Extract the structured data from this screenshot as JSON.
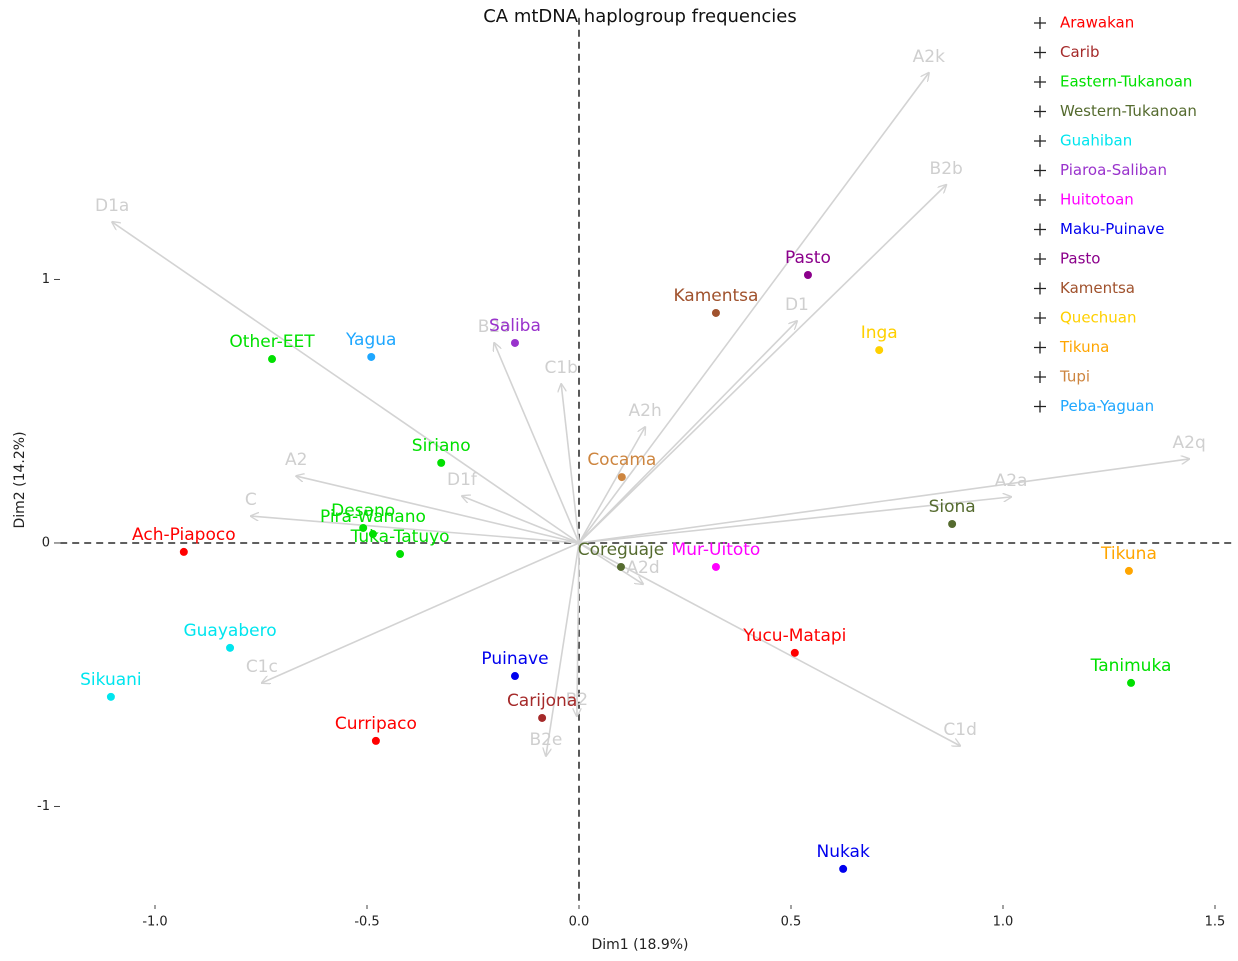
{
  "chart_data": {
    "type": "biplot",
    "title": "CA mtDNA haplogroup frequencies",
    "xlabel": "Dim1 (18.9%)",
    "ylabel": "Dim2 (14.2%)",
    "xlim": [
      -1.2,
      1.55
    ],
    "ylim": [
      -1.35,
      2.05
    ],
    "xticks": [
      {
        "value": -1.0,
        "label": "-1.0"
      },
      -0.5,
      {
        "value": 0,
        "label": "0.0"
      },
      0.5,
      {
        "value": 1.0,
        "label": "1.0"
      },
      1.5
    ],
    "yticks": [
      -1,
      0,
      1
    ],
    "series": [
      {
        "name": "Arawakan",
        "color": "#ff0000",
        "labels": [
          "Ach-Piapoco",
          "Curripaco",
          "Yucu-Matapi"
        ],
        "x": [
          -0.932,
          -0.479,
          0.509
        ],
        "y": [
          -0.034,
          -0.751,
          -0.417
        ]
      },
      {
        "name": "Carib",
        "color": "#a52a2a",
        "labels": [
          "Carijona"
        ],
        "x": [
          -0.087
        ],
        "y": [
          -0.664
        ]
      },
      {
        "name": "Eastern-Tukanoan",
        "color": "#00e000",
        "labels": [
          "Other-EET",
          "Siriano",
          "Desano",
          "Pira-Wanano",
          "Tuka-Tatuyo",
          "Tanimuka"
        ],
        "x": [
          -0.724,
          -0.325,
          -0.509,
          -0.486,
          -0.422,
          1.302
        ],
        "y": [
          0.698,
          0.304,
          0.057,
          0.034,
          -0.042,
          -0.531
        ]
      },
      {
        "name": "Western-Tukanoan",
        "color": "#556b2f",
        "labels": [
          "Coreguaje",
          "Siona"
        ],
        "x": [
          0.099,
          0.88
        ],
        "y": [
          -0.091,
          0.072
        ]
      },
      {
        "name": "Guahiban",
        "color": "#00e5ee",
        "labels": [
          "Guayabero",
          "Sikuani"
        ],
        "x": [
          -0.823,
          -1.104
        ],
        "y": [
          -0.398,
          -0.584
        ]
      },
      {
        "name": "Piaroa-Saliban",
        "color": "#9932cc",
        "labels": [
          "Saliba"
        ],
        "x": [
          -0.151
        ],
        "y": [
          0.759
        ]
      },
      {
        "name": "Huitotoan",
        "color": "#ff00ff",
        "labels": [
          "Mur-Uitoto"
        ],
        "x": [
          0.323
        ],
        "y": [
          -0.091
        ]
      },
      {
        "name": "Maku-Puinave",
        "color": "#0000ee",
        "labels": [
          "Puinave",
          "Nukak"
        ],
        "x": [
          -0.151,
          0.623
        ],
        "y": [
          -0.505,
          -1.237
        ]
      },
      {
        "name": "Pasto",
        "color": "#8b008b",
        "labels": [
          "Pasto"
        ],
        "x": [
          0.54
        ],
        "y": [
          1.017
        ]
      },
      {
        "name": "Kamentsa",
        "color": "#a0522d",
        "labels": [
          "Kamentsa"
        ],
        "x": [
          0.323
        ],
        "y": [
          0.873
        ]
      },
      {
        "name": "Quechuan",
        "color": "#ffd000",
        "labels": [
          "Inga"
        ],
        "x": [
          0.708
        ],
        "y": [
          0.732
        ]
      },
      {
        "name": "Tikuna",
        "color": "#ffa500",
        "labels": [
          "Tikuna"
        ],
        "x": [
          1.297
        ],
        "y": [
          -0.106
        ]
      },
      {
        "name": "Tupi",
        "color": "#cd853f",
        "labels": [
          "Cocama"
        ],
        "x": [
          0.101
        ],
        "y": [
          0.25
        ]
      },
      {
        "name": "Peba-Yaguan",
        "color": "#1ea7ff",
        "labels": [
          "Yagua"
        ],
        "x": [
          -0.49
        ],
        "y": [
          0.706
        ]
      }
    ],
    "arrows": {
      "color": "#d3d3d3",
      "labels": [
        "A2k",
        "B2b",
        "D1a",
        "D1",
        "B2o",
        "C1b",
        "A2h",
        "A2",
        "C",
        "D1f",
        "A2q",
        "A2a",
        "A2d",
        "C1c",
        "B2",
        "B2e",
        "C1d"
      ],
      "x": [
        0.825,
        0.866,
        -1.101,
        0.514,
        -0.2,
        -0.042,
        0.156,
        -0.667,
        -0.774,
        -0.276,
        1.439,
        1.019,
        0.151,
        -0.748,
        -0.005,
        -0.078,
        0.899
      ],
      "y": [
        1.784,
        1.359,
        1.218,
        0.842,
        0.759,
        0.603,
        0.44,
        0.254,
        0.102,
        0.178,
        0.319,
        0.175,
        -0.156,
        -0.531,
        -0.657,
        -0.808,
        -0.77
      ]
    }
  }
}
